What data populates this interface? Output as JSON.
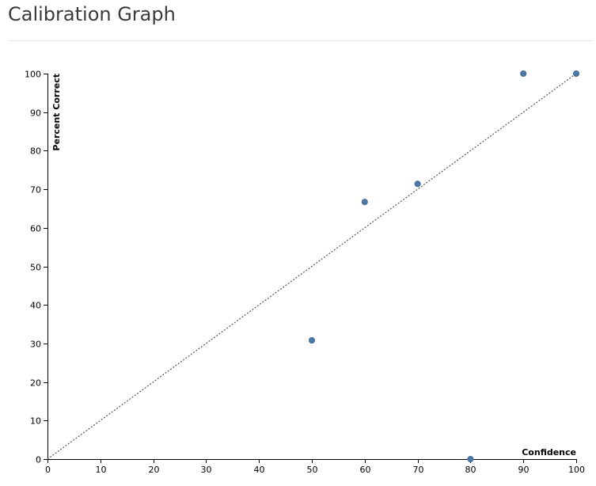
{
  "page": {
    "title": "Calibration Graph"
  },
  "colors": {
    "point": "#4c78a8",
    "point_stroke": "#3d6490",
    "reference_line": "#555555",
    "axis": "#000000",
    "divider": "#e6e6e6",
    "title": "#3a3a3a"
  },
  "chart_data": {
    "type": "scatter",
    "title": "",
    "xlabel": "Confidence",
    "ylabel": "Percent Correct",
    "xlim": [
      0,
      100
    ],
    "ylim": [
      0,
      100
    ],
    "x_ticks": [
      0,
      10,
      20,
      30,
      40,
      50,
      60,
      70,
      80,
      90,
      100
    ],
    "y_ticks": [
      0,
      10,
      20,
      30,
      40,
      50,
      60,
      70,
      80,
      90,
      100
    ],
    "grid": false,
    "legend": "none",
    "reference_line": {
      "style": "dotted",
      "from": [
        0,
        0
      ],
      "to": [
        100,
        100
      ]
    },
    "series": [
      {
        "x": [
          50,
          60,
          70,
          80,
          90,
          100
        ],
        "y": [
          30.8,
          66.7,
          71.4,
          0,
          100,
          100
        ]
      }
    ]
  }
}
